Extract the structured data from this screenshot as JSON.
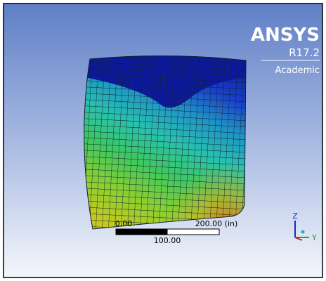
{
  "logo": {
    "title": "ANSYS",
    "version": "R17.2",
    "edition": "Academic"
  },
  "scale_bar": {
    "start": "0.00",
    "end": "200.00 (in)",
    "mid": "100.00"
  },
  "triad": {
    "z": "Z",
    "y": "Y"
  }
}
